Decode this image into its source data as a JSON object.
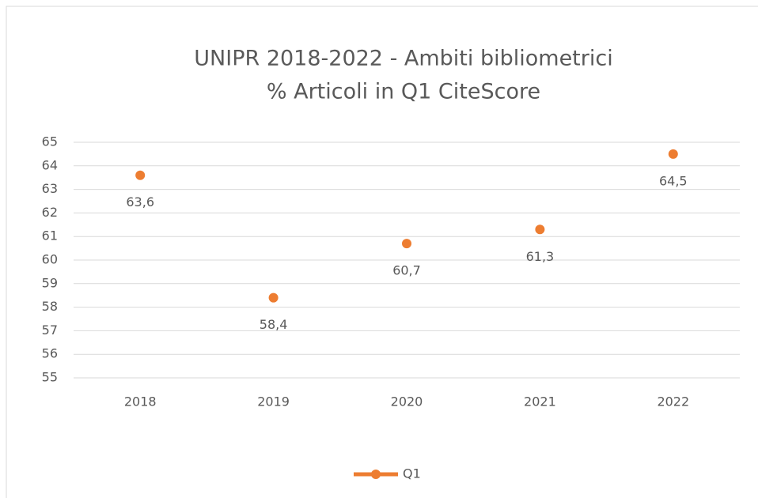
{
  "chart_data": {
    "type": "line",
    "title": "UNIPR 2018-2022 - Ambiti bibliometrici",
    "subtitle": "% Articoli in Q1 CiteScore",
    "categories": [
      "2018",
      "2019",
      "2020",
      "2021",
      "2022"
    ],
    "series": [
      {
        "name": "Q1",
        "color": "#ed7d31",
        "values": [
          63.6,
          58.4,
          60.7,
          61.3,
          64.5
        ],
        "value_labels": [
          "63,6",
          "58,4",
          "60,7",
          "61,3",
          "64,5"
        ]
      }
    ],
    "ylim": [
      55,
      65
    ],
    "yticks": [
      55,
      56,
      57,
      58,
      59,
      60,
      61,
      62,
      63,
      64,
      65
    ],
    "grid": true,
    "legend": "bottom"
  }
}
